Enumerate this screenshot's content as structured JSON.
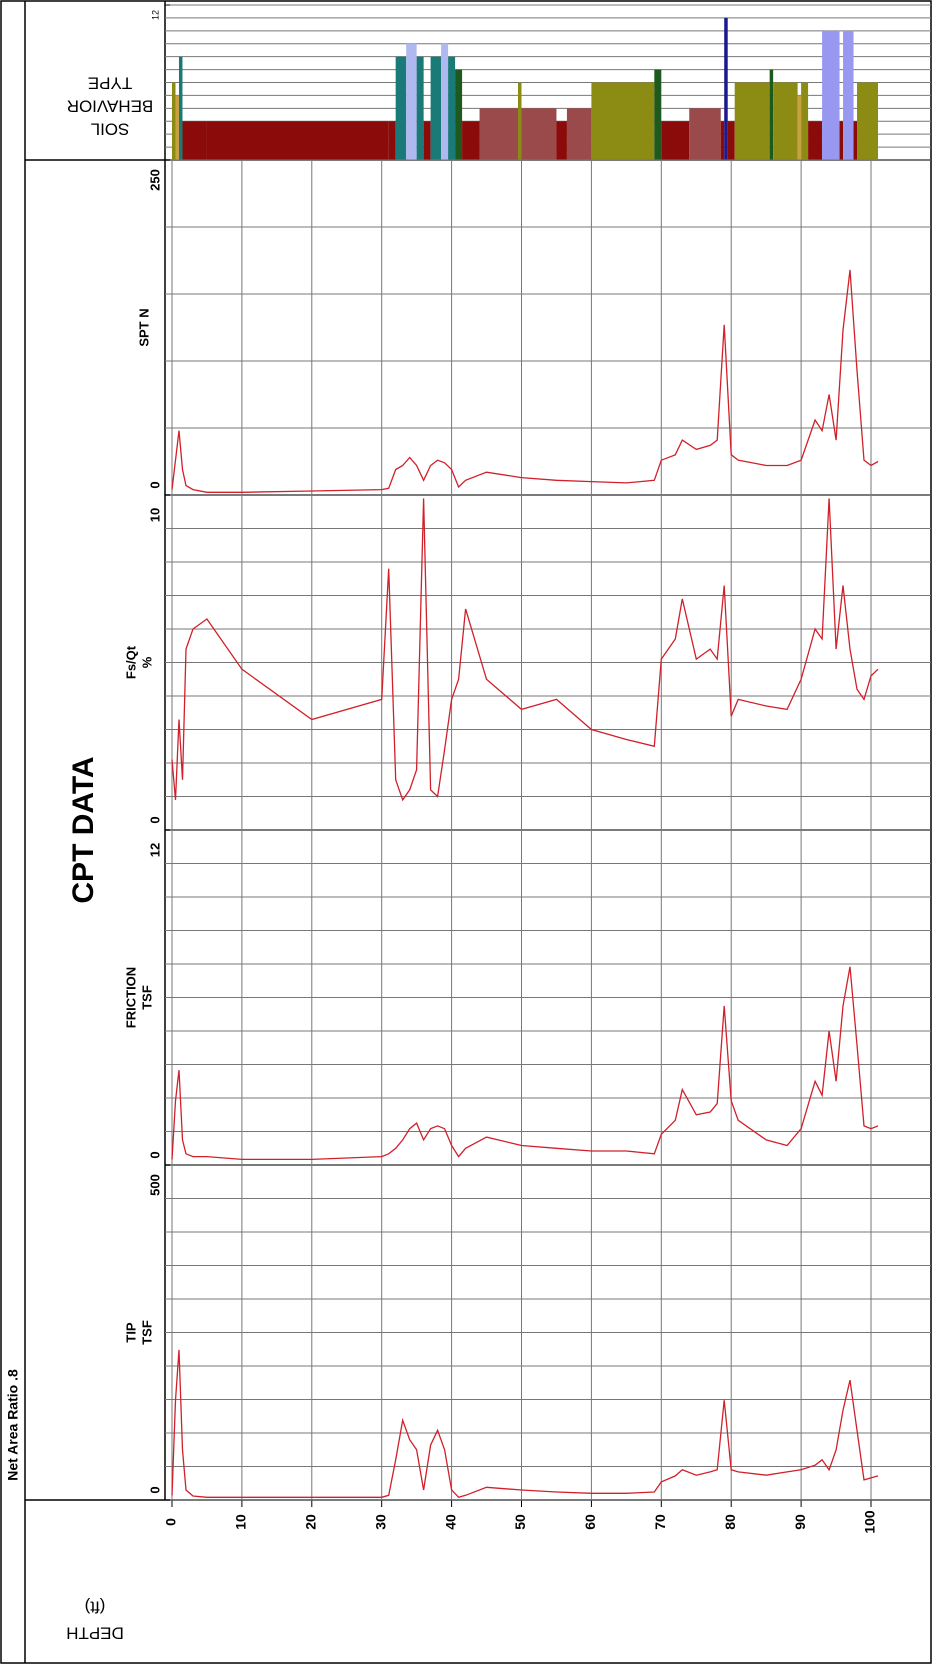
{
  "title": "CPT DATA",
  "note": "Net Area Ratio .8",
  "depth_axis": {
    "label": [
      "DEPTH",
      "(ft)"
    ],
    "xlim": [
      -1,
      101
    ],
    "xticks": [
      0,
      10,
      20,
      30,
      40,
      50,
      60,
      70,
      80,
      90,
      100
    ]
  },
  "chart_data": [
    {
      "type": "bar",
      "label": [
        "SOIL",
        "BEHAVIOR",
        "TYPE"
      ],
      "depths": [
        0,
        0.5,
        1,
        1.5,
        5,
        31,
        32,
        33.5,
        35,
        36,
        37,
        38.5,
        39.5,
        40.5,
        41.5,
        44,
        49.5,
        50,
        55,
        56.5,
        60,
        69,
        70,
        74,
        78.5,
        79,
        79.5,
        80.5,
        85.5,
        86,
        89.5,
        90,
        91,
        93,
        95.5,
        96,
        97.5,
        98,
        101
      ],
      "zones": [
        6,
        5,
        8,
        3,
        3,
        3,
        8,
        9,
        8,
        3,
        8,
        9,
        8,
        7,
        3,
        4,
        6,
        4,
        3,
        4,
        6,
        7,
        3,
        4,
        3,
        11,
        3,
        6,
        7,
        6,
        5,
        6,
        3,
        10,
        3,
        10,
        3,
        6
      ],
      "zone_colors": {
        "3": "#8b0a0a",
        "4": "#9a4a4a",
        "5": "#c8a040",
        "6": "#8c8c14",
        "7": "#1e5a1e",
        "8": "#1a7a78",
        "9": "#b0b8f0",
        "10": "#9898f0",
        "11": "#1a1a8c"
      },
      "ylim": [
        0,
        12
      ],
      "yticks": [
        12
      ],
      "grid": [
        0,
        1,
        2,
        3,
        4,
        5,
        6,
        7,
        8,
        9,
        10,
        11,
        12
      ]
    },
    {
      "type": "line",
      "label": [
        "SPT N"
      ],
      "color": "#d0202a",
      "ylim": [
        0,
        250
      ],
      "yticks": [
        0,
        250
      ],
      "grid": [
        0,
        50,
        100,
        150,
        200,
        250
      ],
      "x": [
        0,
        0.5,
        1,
        1.5,
        2,
        3,
        5,
        10,
        20,
        30,
        31,
        32,
        33,
        34,
        35,
        36,
        37,
        38,
        39,
        40,
        41,
        42,
        45,
        50,
        55,
        60,
        65,
        69,
        70,
        72,
        73,
        75,
        77,
        78,
        79,
        80,
        81,
        85,
        88,
        90,
        92,
        93,
        94,
        95,
        96,
        97,
        98,
        99,
        100,
        101
      ],
      "values": [
        4,
        26,
        48,
        19,
        7,
        4,
        2,
        2,
        3,
        4,
        5,
        19,
        22,
        28,
        22,
        11,
        22,
        26,
        24,
        19,
        6,
        11,
        17,
        13,
        11,
        10,
        9,
        11,
        26,
        30,
        41,
        34,
        37,
        41,
        127,
        30,
        26,
        22,
        22,
        26,
        56,
        48,
        75,
        41,
        123,
        168,
        93,
        26,
        22,
        25
      ]
    },
    {
      "type": "line",
      "label": [
        "Fs/Qt",
        "%"
      ],
      "color": "#d0202a",
      "ylim": [
        0,
        10
      ],
      "yticks": [
        0,
        10
      ],
      "grid": [
        0,
        1,
        2,
        3,
        4,
        5,
        6,
        7,
        8,
        9,
        10
      ],
      "x": [
        0,
        0.5,
        1,
        1.5,
        2,
        3,
        5,
        10,
        20,
        30,
        31,
        32,
        33,
        34,
        35,
        36,
        37,
        38,
        39,
        40,
        41,
        42,
        45,
        50,
        55,
        60,
        65,
        69,
        70,
        72,
        73,
        75,
        77,
        78,
        79,
        80,
        81,
        85,
        88,
        90,
        92,
        93,
        94,
        95,
        96,
        97,
        98,
        99,
        100,
        101
      ],
      "values": [
        2.1,
        0.9,
        3.3,
        1.5,
        5.4,
        6.0,
        6.3,
        4.8,
        3.3,
        3.9,
        7.8,
        1.5,
        0.9,
        1.2,
        1.8,
        9.9,
        1.2,
        1.0,
        2.4,
        3.9,
        4.5,
        6.6,
        4.5,
        3.6,
        3.9,
        3.0,
        2.7,
        2.5,
        5.1,
        5.7,
        6.9,
        5.1,
        5.4,
        5.1,
        7.3,
        3.4,
        3.9,
        3.7,
        3.6,
        4.5,
        6.0,
        5.7,
        9.9,
        5.4,
        7.3,
        5.4,
        4.2,
        3.9,
        4.6,
        4.8
      ]
    },
    {
      "type": "line",
      "label": [
        "FRICTION",
        "TSF"
      ],
      "color": "#d0202a",
      "ylim": [
        0,
        12
      ],
      "yticks": [
        0,
        12
      ],
      "grid": [
        0,
        1.2,
        2.4,
        3.6,
        4.8,
        6,
        7.2,
        8.4,
        9.6,
        10.8,
        12
      ],
      "x": [
        0,
        0.5,
        1,
        1.5,
        2,
        3,
        5,
        10,
        20,
        30,
        31,
        32,
        33,
        34,
        35,
        36,
        37,
        38,
        39,
        40,
        41,
        42,
        45,
        50,
        55,
        60,
        65,
        69,
        70,
        72,
        73,
        75,
        77,
        78,
        79,
        80,
        81,
        85,
        88,
        90,
        92,
        93,
        94,
        95,
        96,
        97,
        98,
        99,
        100,
        101
      ],
      "values": [
        0.2,
        2.3,
        3.4,
        0.9,
        0.4,
        0.3,
        0.3,
        0.2,
        0.2,
        0.3,
        0.4,
        0.6,
        0.9,
        1.3,
        1.5,
        0.9,
        1.3,
        1.4,
        1.3,
        0.7,
        0.3,
        0.6,
        1.0,
        0.7,
        0.6,
        0.5,
        0.5,
        0.4,
        1.1,
        1.6,
        2.7,
        1.8,
        1.9,
        2.2,
        5.7,
        2.3,
        1.6,
        0.9,
        0.7,
        1.3,
        3.0,
        2.5,
        4.8,
        3.0,
        5.7,
        7.1,
        4.3,
        1.4,
        1.3,
        1.4
      ]
    },
    {
      "type": "line",
      "label": [
        "TIP",
        "TSF"
      ],
      "color": "#d0202a",
      "ylim": [
        0,
        500
      ],
      "yticks": [
        0,
        500
      ],
      "grid": [
        0,
        50,
        100,
        150,
        200,
        250,
        300,
        350,
        400,
        450,
        500
      ],
      "x": [
        0,
        0.5,
        1,
        1.5,
        2,
        3,
        5,
        10,
        20,
        30,
        31,
        32,
        33,
        34,
        35,
        36,
        37,
        38,
        39,
        40,
        41,
        42,
        45,
        50,
        55,
        60,
        65,
        69,
        70,
        72,
        73,
        75,
        77,
        78,
        79,
        80,
        81,
        85,
        88,
        90,
        92,
        93,
        94,
        95,
        96,
        97,
        98,
        99,
        100,
        101
      ],
      "values": [
        7,
        149,
        224,
        75,
        15,
        6,
        4,
        4,
        4,
        4,
        7,
        60,
        119,
        90,
        75,
        15,
        82,
        104,
        75,
        15,
        4,
        7,
        19,
        15,
        12,
        10,
        10,
        12,
        27,
        36,
        45,
        37,
        42,
        45,
        149,
        45,
        42,
        37,
        42,
        45,
        52,
        60,
        45,
        75,
        134,
        179,
        104,
        30,
        33,
        36
      ]
    }
  ]
}
